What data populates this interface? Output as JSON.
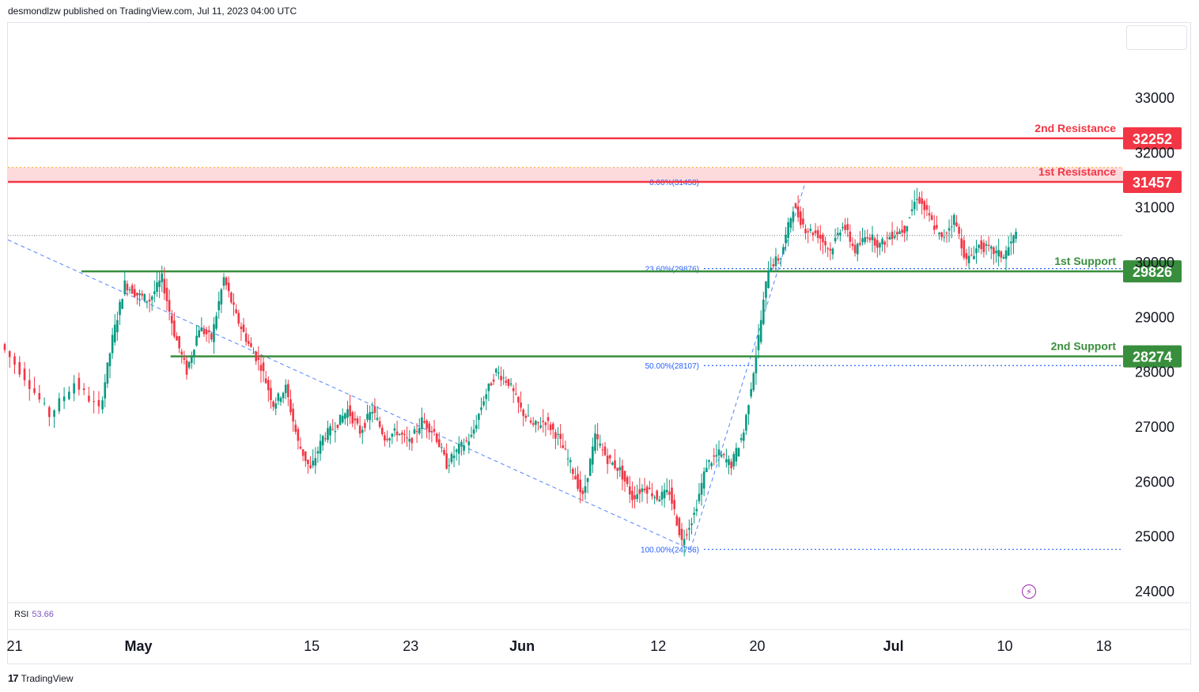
{
  "header": {
    "text": "desmondlzw published on TradingView.com, Jul 11, 2023 04:00 UTC"
  },
  "brand": {
    "name": "TradingView"
  },
  "indicator": {
    "name": "RSI",
    "value": "53.66"
  },
  "colors": {
    "resistance": "#f23645",
    "support": "#388e3c",
    "fib": "#2962ff",
    "up": "#089981",
    "down": "#f23645"
  },
  "chart_data": {
    "type": "candlestick",
    "ylim": [
      23800,
      33600
    ],
    "y_ticks": [
      24000,
      25000,
      26000,
      27000,
      28000,
      29000,
      30000,
      31000,
      32000,
      33000
    ],
    "x_ticks": [
      {
        "label": "21",
        "day": -10
      },
      {
        "label": "May",
        "day": 0
      },
      {
        "label": "15",
        "day": 14
      },
      {
        "label": "23",
        "day": 22
      },
      {
        "label": "Jun",
        "day": 31
      },
      {
        "label": "12",
        "day": 42
      },
      {
        "label": "20",
        "day": 50
      },
      {
        "label": "Jul",
        "day": 61
      },
      {
        "label": "10",
        "day": 70
      },
      {
        "label": "18",
        "day": 78
      }
    ],
    "levels": [
      {
        "name": "2nd Resistance",
        "value": 32252,
        "role": "resistance"
      },
      {
        "name": "1st Resistance",
        "value": 31457,
        "role": "resistance"
      },
      {
        "name": "1st Support",
        "value": 29826,
        "role": "support"
      },
      {
        "name": "2nd Support",
        "value": 28274,
        "role": "support"
      }
    ],
    "fib_levels": [
      {
        "label": "0.00%(31458)",
        "value": 31458
      },
      {
        "label": "23.60%(29876)",
        "value": 29876
      },
      {
        "label": "50.00%(28107)",
        "value": 28107
      },
      {
        "label": "100.00%(24756)",
        "value": 24756
      }
    ],
    "last_price": 30480,
    "series_points": [
      {
        "day": -11,
        "price": 28500
      },
      {
        "day": -9,
        "price": 27900
      },
      {
        "day": -7,
        "price": 27200
      },
      {
        "day": -5,
        "price": 27800
      },
      {
        "day": -3,
        "price": 27300
      },
      {
        "day": -2,
        "price": 28600
      },
      {
        "day": -1,
        "price": 29600
      },
      {
        "day": 0,
        "price": 29400
      },
      {
        "day": 1,
        "price": 29300
      },
      {
        "day": 2,
        "price": 29700
      },
      {
        "day": 3,
        "price": 28700
      },
      {
        "day": 4,
        "price": 28000
      },
      {
        "day": 5,
        "price": 28800
      },
      {
        "day": 6,
        "price": 28600
      },
      {
        "day": 7,
        "price": 29700
      },
      {
        "day": 8,
        "price": 29000
      },
      {
        "day": 9,
        "price": 28500
      },
      {
        "day": 10,
        "price": 28100
      },
      {
        "day": 11,
        "price": 27400
      },
      {
        "day": 12,
        "price": 27700
      },
      {
        "day": 13,
        "price": 26700
      },
      {
        "day": 14,
        "price": 26200
      },
      {
        "day": 15,
        "price": 26800
      },
      {
        "day": 16,
        "price": 27000
      },
      {
        "day": 17,
        "price": 27300
      },
      {
        "day": 18,
        "price": 26900
      },
      {
        "day": 19,
        "price": 27300
      },
      {
        "day": 20,
        "price": 26800
      },
      {
        "day": 21,
        "price": 26900
      },
      {
        "day": 22,
        "price": 26700
      },
      {
        "day": 23,
        "price": 27100
      },
      {
        "day": 24,
        "price": 26900
      },
      {
        "day": 25,
        "price": 26300
      },
      {
        "day": 26,
        "price": 26600
      },
      {
        "day": 27,
        "price": 26800
      },
      {
        "day": 28,
        "price": 27500
      },
      {
        "day": 29,
        "price": 28000
      },
      {
        "day": 30,
        "price": 27800
      },
      {
        "day": 31,
        "price": 27300
      },
      {
        "day": 32,
        "price": 27000
      },
      {
        "day": 33,
        "price": 27100
      },
      {
        "day": 34,
        "price": 26800
      },
      {
        "day": 35,
        "price": 26300
      },
      {
        "day": 36,
        "price": 25700
      },
      {
        "day": 37,
        "price": 26800
      },
      {
        "day": 38,
        "price": 26400
      },
      {
        "day": 39,
        "price": 26200
      },
      {
        "day": 40,
        "price": 25700
      },
      {
        "day": 41,
        "price": 25900
      },
      {
        "day": 42,
        "price": 25700
      },
      {
        "day": 43,
        "price": 25800
      },
      {
        "day": 44,
        "price": 24900
      },
      {
        "day": 45,
        "price": 25400
      },
      {
        "day": 46,
        "price": 26300
      },
      {
        "day": 47,
        "price": 26500
      },
      {
        "day": 48,
        "price": 26300
      },
      {
        "day": 49,
        "price": 26900
      },
      {
        "day": 50,
        "price": 28300
      },
      {
        "day": 51,
        "price": 29900
      },
      {
        "day": 52,
        "price": 30100
      },
      {
        "day": 53,
        "price": 31000
      },
      {
        "day": 54,
        "price": 30600
      },
      {
        "day": 55,
        "price": 30500
      },
      {
        "day": 56,
        "price": 30200
      },
      {
        "day": 57,
        "price": 30700
      },
      {
        "day": 58,
        "price": 30200
      },
      {
        "day": 59,
        "price": 30500
      },
      {
        "day": 60,
        "price": 30300
      },
      {
        "day": 61,
        "price": 30500
      },
      {
        "day": 62,
        "price": 30600
      },
      {
        "day": 63,
        "price": 31200
      },
      {
        "day": 64,
        "price": 30800
      },
      {
        "day": 65,
        "price": 30400
      },
      {
        "day": 66,
        "price": 30800
      },
      {
        "day": 67,
        "price": 30000
      },
      {
        "day": 68,
        "price": 30300
      },
      {
        "day": 69,
        "price": 30200
      },
      {
        "day": 70,
        "price": 30100
      },
      {
        "day": 71,
        "price": 30500
      }
    ]
  }
}
